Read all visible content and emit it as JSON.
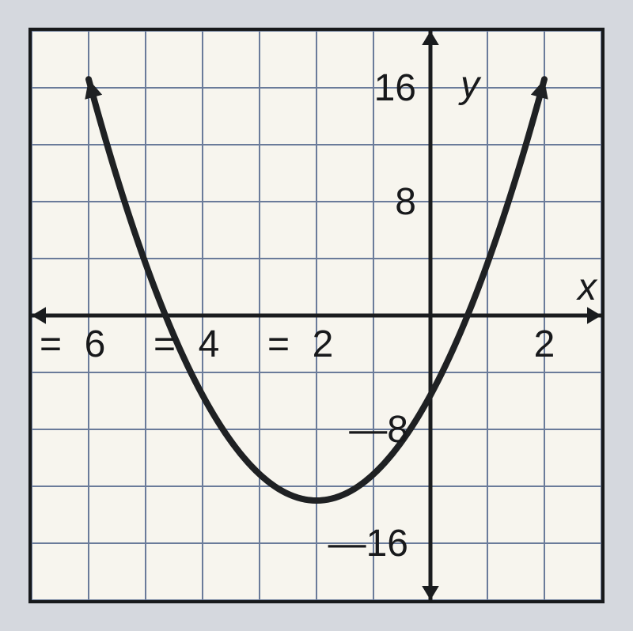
{
  "chart": {
    "type": "line",
    "background_color": "#f7f5ee",
    "border_color": "#17191b",
    "grid_color": "#6a7b9a",
    "axis_color": "#1a1c1e",
    "curve_color": "#1f2123",
    "label_color": "#18191b",
    "xlim": [
      -7,
      3
    ],
    "ylim": [
      -20,
      20
    ],
    "xtick_step": 1,
    "ytick_step": 4,
    "x_labels": [
      {
        "value": -6,
        "text": "-6"
      },
      {
        "value": -4,
        "text": "-4"
      },
      {
        "value": -2,
        "text": "-2"
      },
      {
        "value": 2,
        "text": "2"
      }
    ],
    "y_labels": [
      {
        "value": 16,
        "text": "16"
      },
      {
        "value": 8,
        "text": "8"
      },
      {
        "value": -8,
        "text": "-8"
      },
      {
        "value": -16,
        "text": "-16"
      }
    ],
    "x_axis_label": "x",
    "y_axis_label": "y",
    "label_fontsize": 48,
    "tick_fontsize": 48,
    "parabola": {
      "vertex_x": -2,
      "vertex_y": -13,
      "a": 1.85,
      "x_start": -6,
      "x_end": 2
    }
  }
}
